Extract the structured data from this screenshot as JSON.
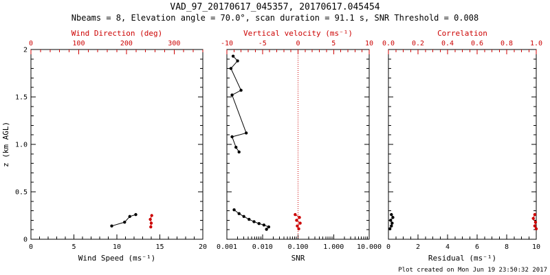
{
  "header": {
    "title": "VAD_97_20170617_045357, 20170617.045454",
    "subtitle": "Nbeams = 8, Elevation angle = 70.0°, scan duration = 91.1 s, SNR Threshold = 0.008"
  },
  "footer": {
    "created": "Plot created on Mon Jun 19 23:50:32 2017"
  },
  "colors": {
    "accent_red": "#cc0000",
    "black": "#000000"
  },
  "chart_data": [
    {
      "type": "scatter",
      "panel": "wind",
      "y_axis": {
        "label": "z (km AGL)",
        "min": 0,
        "max": 2,
        "major_ticks": [
          0,
          0.5,
          1,
          1.5,
          2
        ],
        "tick_labels": [
          "0",
          "0.5",
          "1.0",
          "1.5",
          "2"
        ],
        "minor_step": 0.1,
        "show_labels": true
      },
      "bottom_axis": {
        "label": "Wind Speed (ms⁻¹)",
        "scale": "linear",
        "min": 0,
        "max": 20,
        "major_ticks": [
          0,
          5,
          10,
          15,
          20
        ],
        "tick_labels": [
          "0",
          "5",
          "10",
          "15",
          "20"
        ],
        "minor_step": 1,
        "color": "#000000"
      },
      "top_axis": {
        "label": "Wind Direction (deg)",
        "scale": "linear",
        "min": 0,
        "max": 360,
        "major_ticks": [
          0,
          100,
          200,
          300
        ],
        "tick_labels": [
          "0",
          "100",
          "200",
          "300"
        ],
        "minor_step": 20,
        "color": "#cc0000"
      },
      "series": [
        {
          "name": "wind-speed",
          "axis": "bottom",
          "color": "#000000",
          "connect": true,
          "points": [
            [
              9.4,
              0.14
            ],
            [
              10.9,
              0.18
            ],
            [
              11.5,
              0.24
            ],
            [
              12.2,
              0.26
            ]
          ]
        },
        {
          "name": "wind-direction",
          "axis": "top",
          "color": "#cc0000",
          "connect": true,
          "points": [
            [
              253,
              0.25
            ],
            [
              250,
              0.21
            ],
            [
              252,
              0.17
            ],
            [
              251,
              0.13
            ]
          ]
        }
      ]
    },
    {
      "type": "scatter",
      "panel": "snr",
      "y_axis": {
        "label": "",
        "min": 0,
        "max": 2,
        "major_ticks": [
          0,
          0.5,
          1,
          1.5,
          2
        ],
        "tick_labels": [],
        "minor_step": 0.1,
        "show_labels": false
      },
      "bottom_axis": {
        "label": "SNR",
        "scale": "log",
        "min": 0.001,
        "max": 10,
        "major_ticks": [
          0.001,
          0.01,
          0.1,
          1,
          10
        ],
        "tick_labels": [
          "0.001",
          "0.010",
          "0.100",
          "1.000",
          "10.000"
        ],
        "color": "#000000"
      },
      "top_axis": {
        "label": "Vertical velocity (ms⁻¹)",
        "scale": "linear",
        "min": -10,
        "max": 10,
        "major_ticks": [
          -10,
          -5,
          0,
          5,
          10
        ],
        "tick_labels": [
          "-10",
          "-5",
          "0",
          "5",
          "10"
        ],
        "minor_step": 1,
        "color": "#cc0000"
      },
      "ref_line": {
        "axis": "top",
        "value": 0,
        "color": "#cc0000",
        "style": "dotted"
      },
      "series": [
        {
          "name": "snr-profile-upper",
          "axis": "bottom",
          "color": "#000000",
          "connect": true,
          "points": [
            [
              0.0015,
              1.93
            ],
            [
              0.002,
              1.88
            ],
            [
              0.0013,
              1.8
            ],
            [
              0.0025,
              1.57
            ],
            [
              0.0014,
              1.52
            ],
            [
              0.0035,
              1.12
            ],
            [
              0.0014,
              1.08
            ],
            [
              0.0018,
              0.97
            ],
            [
              0.0022,
              0.92
            ]
          ]
        },
        {
          "name": "snr-profile-lower",
          "axis": "bottom",
          "color": "#000000",
          "connect": true,
          "points": [
            [
              0.0016,
              0.31
            ],
            [
              0.0022,
              0.27
            ],
            [
              0.003,
              0.24
            ],
            [
              0.0042,
              0.21
            ],
            [
              0.0058,
              0.185
            ],
            [
              0.008,
              0.165
            ],
            [
              0.011,
              0.15
            ],
            [
              0.015,
              0.13
            ],
            [
              0.013,
              0.105
            ]
          ]
        },
        {
          "name": "vertical-velocity",
          "axis": "top",
          "color": "#cc0000",
          "connect": true,
          "points": [
            [
              -0.4,
              0.26
            ],
            [
              0.2,
              0.23
            ],
            [
              -0.2,
              0.2
            ],
            [
              0.3,
              0.17
            ],
            [
              -0.1,
              0.14
            ],
            [
              0.1,
              0.11
            ]
          ]
        }
      ]
    },
    {
      "type": "scatter",
      "panel": "residual",
      "y_axis": {
        "label": "",
        "min": 0,
        "max": 2,
        "major_ticks": [
          0,
          0.5,
          1,
          1.5,
          2
        ],
        "tick_labels": [],
        "minor_step": 0.1,
        "show_labels": false
      },
      "bottom_axis": {
        "label": "Residual (ms⁻¹)",
        "scale": "linear",
        "min": 0,
        "max": 10,
        "major_ticks": [
          0,
          2,
          4,
          6,
          8,
          10
        ],
        "tick_labels": [
          "0",
          "2",
          "4",
          "6",
          "8",
          "10"
        ],
        "minor_step": 0.5,
        "color": "#000000"
      },
      "top_axis": {
        "label": "Correlation",
        "scale": "linear",
        "min": 0,
        "max": 1,
        "major_ticks": [
          0,
          0.2,
          0.4,
          0.6,
          0.8,
          1
        ],
        "tick_labels": [
          "0.0",
          "0.2",
          "0.4",
          "0.6",
          "0.8",
          "1.0"
        ],
        "minor_step": 0.05,
        "color": "#cc0000"
      },
      "series": [
        {
          "name": "residual",
          "axis": "bottom",
          "color": "#000000",
          "connect": true,
          "points": [
            [
              0.2,
              0.26
            ],
            [
              0.3,
              0.23
            ],
            [
              0.15,
              0.2
            ],
            [
              0.25,
              0.17
            ],
            [
              0.2,
              0.14
            ],
            [
              0.1,
              0.11
            ]
          ]
        },
        {
          "name": "correlation",
          "axis": "top",
          "color": "#cc0000",
          "connect": true,
          "points": [
            [
              0.99,
              0.26
            ],
            [
              0.98,
              0.22
            ],
            [
              0.995,
              0.18
            ],
            [
              0.99,
              0.14
            ],
            [
              1.0,
              0.11
            ]
          ]
        }
      ]
    }
  ]
}
